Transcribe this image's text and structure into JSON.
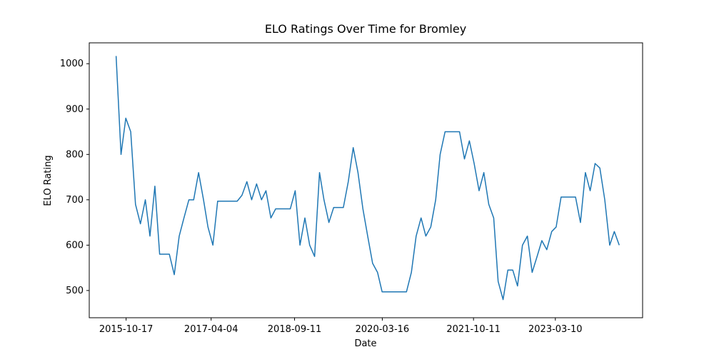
{
  "chart_data": {
    "type": "line",
    "title": "ELO Ratings Over Time for Bromley",
    "x_label": "Date",
    "y_label": "ELO Rating",
    "color": "#1f77b4",
    "x": [
      "2015-08-15",
      "2015-09-15",
      "2015-10-15",
      "2015-11-15",
      "2015-12-15",
      "2016-01-15",
      "2016-02-15",
      "2016-03-15",
      "2016-04-15",
      "2016-05-15",
      "2016-06-15",
      "2016-07-15",
      "2016-08-15",
      "2016-09-15",
      "2016-10-15",
      "2016-11-15",
      "2016-12-15",
      "2017-01-15",
      "2017-02-15",
      "2017-03-15",
      "2017-04-15",
      "2017-05-15",
      "2017-06-15",
      "2017-07-15",
      "2017-08-15",
      "2017-09-15",
      "2017-10-15",
      "2017-11-15",
      "2017-12-15",
      "2018-01-15",
      "2018-02-15",
      "2018-03-15",
      "2018-04-15",
      "2018-05-15",
      "2018-06-15",
      "2018-07-15",
      "2018-08-15",
      "2018-09-15",
      "2018-10-15",
      "2018-11-15",
      "2018-12-15",
      "2019-01-15",
      "2019-02-15",
      "2019-03-15",
      "2019-04-15",
      "2019-05-15",
      "2019-06-15",
      "2019-07-15",
      "2019-08-15",
      "2019-09-15",
      "2019-10-15",
      "2019-11-15",
      "2019-12-15",
      "2020-01-15",
      "2020-02-15",
      "2020-03-15",
      "2020-04-15",
      "2020-05-15",
      "2020-06-15",
      "2020-07-15",
      "2020-08-15",
      "2020-09-15",
      "2020-10-15",
      "2020-11-15",
      "2020-12-15",
      "2021-01-15",
      "2021-02-15",
      "2021-03-15",
      "2021-04-15",
      "2021-05-15",
      "2021-06-15",
      "2021-07-15",
      "2021-08-15",
      "2021-09-15",
      "2021-10-15",
      "2021-11-15",
      "2021-12-15",
      "2022-01-15",
      "2022-02-15",
      "2022-03-15",
      "2022-04-15",
      "2022-05-15",
      "2022-06-15",
      "2022-07-15",
      "2022-08-15",
      "2022-09-15",
      "2022-10-15",
      "2022-11-15",
      "2022-12-15",
      "2023-01-15",
      "2023-02-15",
      "2023-03-15",
      "2023-04-15",
      "2023-05-15",
      "2023-06-15",
      "2023-07-15",
      "2023-08-15",
      "2023-09-15",
      "2023-10-15",
      "2023-11-15",
      "2023-12-15",
      "2024-01-15",
      "2024-02-15",
      "2024-03-15",
      "2024-04-15"
    ],
    "values": [
      1017,
      800,
      880,
      850,
      690,
      647,
      700,
      620,
      730,
      580,
      580,
      580,
      535,
      620,
      660,
      700,
      700,
      760,
      700,
      640,
      600,
      697,
      697,
      697,
      697,
      697,
      710,
      740,
      700,
      735,
      700,
      720,
      660,
      680,
      680,
      680,
      680,
      720,
      600,
      660,
      600,
      575,
      760,
      700,
      650,
      683,
      683,
      683,
      740,
      815,
      760,
      680,
      620,
      560,
      540,
      497,
      497,
      497,
      497,
      497,
      497,
      540,
      620,
      660,
      620,
      640,
      700,
      800,
      850,
      850,
      850,
      850,
      790,
      830,
      780,
      720,
      760,
      690,
      660,
      520,
      480,
      545,
      545,
      510,
      600,
      620,
      540,
      575,
      610,
      590,
      630,
      640,
      706,
      706,
      706,
      706,
      650,
      760,
      720,
      780,
      770,
      700,
      600,
      630,
      600
    ],
    "xlim": [
      "2015-02-27",
      "2024-09-09"
    ],
    "xticks": [
      "2015-10-17",
      "2017-04-04",
      "2018-09-11",
      "2020-03-16",
      "2021-10-11",
      "2023-03-10"
    ],
    "ylim": [
      440,
      1046
    ],
    "yticks": [
      500,
      600,
      700,
      800,
      900,
      1000
    ]
  }
}
